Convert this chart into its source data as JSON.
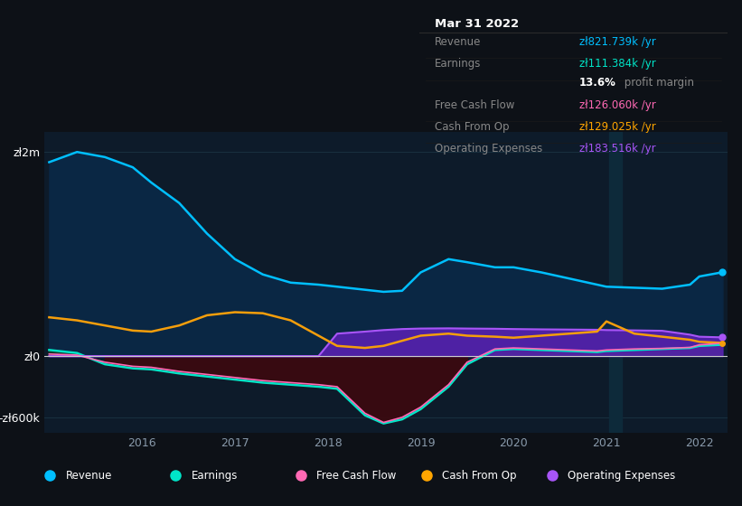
{
  "bg_color": "#0d1117",
  "plot_bg_color": "#0d1b2a",
  "title": "Mar 31 2022",
  "x_years": [
    2015.0,
    2015.3,
    2015.6,
    2015.9,
    2016.1,
    2016.4,
    2016.7,
    2017.0,
    2017.3,
    2017.6,
    2017.9,
    2018.1,
    2018.4,
    2018.6,
    2018.8,
    2019.0,
    2019.3,
    2019.5,
    2019.8,
    2020.0,
    2020.3,
    2020.6,
    2020.9,
    2021.0,
    2021.3,
    2021.6,
    2021.9,
    2022.0,
    2022.25
  ],
  "revenue": [
    1900000,
    2000000,
    1950000,
    1850000,
    1700000,
    1500000,
    1200000,
    950000,
    800000,
    720000,
    700000,
    680000,
    650000,
    630000,
    640000,
    820000,
    950000,
    920000,
    870000,
    870000,
    820000,
    760000,
    700000,
    680000,
    670000,
    660000,
    700000,
    780000,
    821739
  ],
  "earnings": [
    60000,
    30000,
    -80000,
    -120000,
    -130000,
    -170000,
    -200000,
    -230000,
    -260000,
    -280000,
    -300000,
    -320000,
    -580000,
    -660000,
    -620000,
    -520000,
    -300000,
    -80000,
    60000,
    70000,
    60000,
    50000,
    40000,
    50000,
    60000,
    70000,
    80000,
    100000,
    111384
  ],
  "free_cash_flow": [
    20000,
    10000,
    -60000,
    -100000,
    -110000,
    -150000,
    -180000,
    -210000,
    -240000,
    -260000,
    -280000,
    -300000,
    -560000,
    -650000,
    -600000,
    -500000,
    -280000,
    -60000,
    70000,
    80000,
    70000,
    60000,
    50000,
    60000,
    70000,
    75000,
    85000,
    110000,
    126060
  ],
  "cash_from_op": [
    380000,
    350000,
    300000,
    250000,
    240000,
    300000,
    400000,
    430000,
    420000,
    350000,
    200000,
    100000,
    80000,
    100000,
    150000,
    200000,
    220000,
    200000,
    190000,
    180000,
    200000,
    220000,
    240000,
    340000,
    220000,
    190000,
    160000,
    140000,
    129025
  ],
  "op_expenses": [
    0,
    0,
    0,
    0,
    0,
    0,
    0,
    0,
    0,
    0,
    0,
    220000,
    240000,
    255000,
    265000,
    270000,
    272000,
    270000,
    268000,
    265000,
    262000,
    260000,
    258000,
    255000,
    252000,
    248000,
    210000,
    190000,
    183516
  ],
  "ylim": [
    -750000,
    2200000
  ],
  "yticks": [
    -600000,
    0,
    2000000
  ],
  "ytick_labels": [
    "-zł600k",
    "zł0",
    "zł2m"
  ],
  "xtick_years": [
    2016,
    2017,
    2018,
    2019,
    2020,
    2021,
    2022
  ],
  "divider_x": 2021.05,
  "legend": [
    {
      "label": "Revenue",
      "color": "#00bfff"
    },
    {
      "label": "Earnings",
      "color": "#00e5c8"
    },
    {
      "label": "Free Cash Flow",
      "color": "#ff69b4"
    },
    {
      "label": "Cash From Op",
      "color": "#ffa500"
    },
    {
      "label": "Operating Expenses",
      "color": "#a855f7"
    }
  ],
  "tooltip_rows": [
    {
      "label": "Revenue",
      "value": "zł821.739k /yr",
      "color": "#00bfff"
    },
    {
      "label": "Earnings",
      "value": "zł111.384k /yr",
      "color": "#00e5c8"
    },
    {
      "label": "",
      "value": "",
      "margin": "13.6% profit margin"
    },
    {
      "label": "Free Cash Flow",
      "value": "zł126.060k /yr",
      "color": "#ff69b4"
    },
    {
      "label": "Cash From Op",
      "value": "zł129.025k /yr",
      "color": "#ffa500"
    },
    {
      "label": "Operating Expenses",
      "value": "zł183.516k /yr",
      "color": "#a855f7"
    }
  ]
}
